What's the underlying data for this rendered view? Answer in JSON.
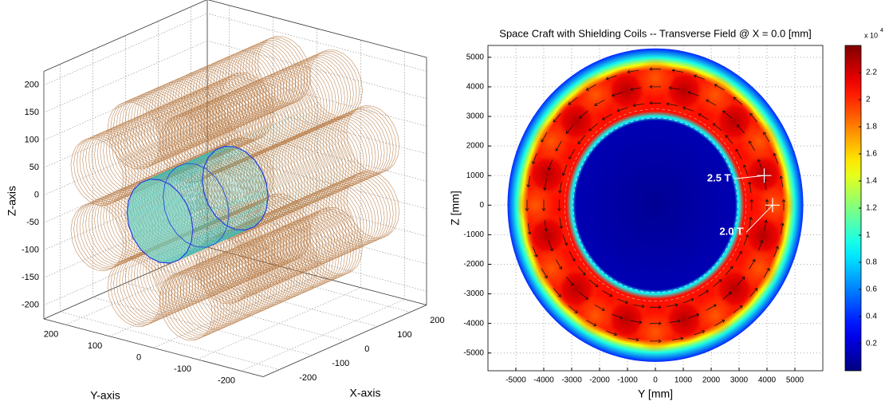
{
  "chart_data": [
    {
      "type": "3d-coils",
      "xlabel": "X-axis",
      "ylabel": "Y-axis",
      "zlabel": "Z-axis",
      "xlim": [
        -250,
        250
      ],
      "ylim": [
        -250,
        250
      ],
      "zlim": [
        -225,
        225
      ],
      "xticks": [
        -200,
        -100,
        0,
        100,
        200
      ],
      "yticks": [
        -200,
        -100,
        0,
        100,
        200
      ],
      "zticks": [
        -200,
        -150,
        -100,
        -50,
        0,
        50,
        100,
        150,
        200
      ],
      "grid": true,
      "coil_color": "#b5773f",
      "core_color": "#2a3ee0"
    },
    {
      "type": "heatmap",
      "title": "Space Craft with Shielding Coils -- Transverse Field @ X = 0.0 [mm]",
      "xlabel": "Y [mm]",
      "ylabel": "Z [mm]",
      "xlim": [
        -6000,
        6000
      ],
      "ylim": [
        -5600,
        5400
      ],
      "xticks": [
        -5000,
        -4000,
        -3000,
        -2000,
        -1000,
        0,
        1000,
        2000,
        3000,
        4000,
        5000
      ],
      "yticks": [
        -5000,
        -4000,
        -3000,
        -2000,
        -1000,
        0,
        1000,
        2000,
        3000,
        4000,
        5000
      ],
      "grid": true,
      "colormap": "jet",
      "clim": [
        0,
        2.4
      ],
      "cticks": [
        0.2,
        0.4,
        0.6,
        0.8,
        1,
        1.2,
        1.4,
        1.6,
        1.8,
        2,
        2.2
      ],
      "cscale_label": "x 10",
      "cscale_exponent": "4",
      "annotations": [
        {
          "text": "2.5 T",
          "x": 3900,
          "y": 1000
        },
        {
          "text": "2.0 T",
          "x": 4200,
          "y": 0
        }
      ]
    }
  ]
}
